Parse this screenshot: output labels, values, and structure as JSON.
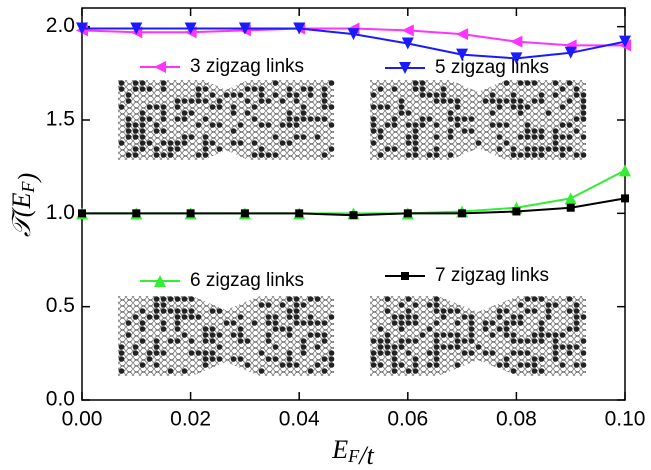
{
  "chart_data": {
    "type": "line",
    "x_label": "E_F/t",
    "y_label": "𝒯(E_F)",
    "x": [
      0,
      0.01,
      0.02,
      0.03,
      0.04,
      0.05,
      0.06,
      0.07,
      0.08,
      0.09,
      0.1
    ],
    "series": [
      {
        "name": "3 zigzag links",
        "color": "#ff33ff",
        "marker": "triangle-left",
        "values": [
          1.98,
          1.97,
          1.97,
          1.98,
          1.99,
          1.99,
          1.98,
          1.96,
          1.92,
          1.9,
          1.9
        ]
      },
      {
        "name": "5 zigzag links",
        "color": "#1a1aff",
        "marker": "triangle-down",
        "values": [
          1.99,
          1.99,
          1.99,
          1.99,
          1.99,
          1.96,
          1.91,
          1.85,
          1.83,
          1.86,
          1.92
        ]
      },
      {
        "name": "6 zigzag links",
        "color": "#33ee33",
        "marker": "triangle-up",
        "values": [
          1.0,
          1.0,
          1.0,
          1.0,
          1.0,
          1.0,
          1.0,
          1.01,
          1.03,
          1.08,
          1.23
        ]
      },
      {
        "name": "7 zigzag links",
        "color": "#000000",
        "marker": "square",
        "values": [
          1.0,
          1.0,
          1.0,
          1.0,
          1.0,
          0.99,
          1.0,
          1.0,
          1.01,
          1.03,
          1.08
        ]
      }
    ],
    "xlim": [
      0,
      0.1
    ],
    "ylim": [
      0,
      2.1
    ],
    "xticks": [
      {
        "value": 0,
        "label": "0.00"
      },
      {
        "value": 0.02,
        "label": "0.02"
      },
      {
        "value": 0.04,
        "label": "0.04"
      },
      {
        "value": 0.06,
        "label": "0.06"
      },
      {
        "value": 0.08,
        "label": "0.08"
      },
      {
        "value": 0.1,
        "label": "0.10"
      }
    ],
    "yticks": [
      {
        "value": 0,
        "label": "0.0"
      },
      {
        "value": 0.5,
        "label": "0.5"
      },
      {
        "value": 1,
        "label": "1.0"
      },
      {
        "value": 1.5,
        "label": "1.5"
      },
      {
        "value": 2,
        "label": "2.0"
      }
    ],
    "grid": false
  }
}
